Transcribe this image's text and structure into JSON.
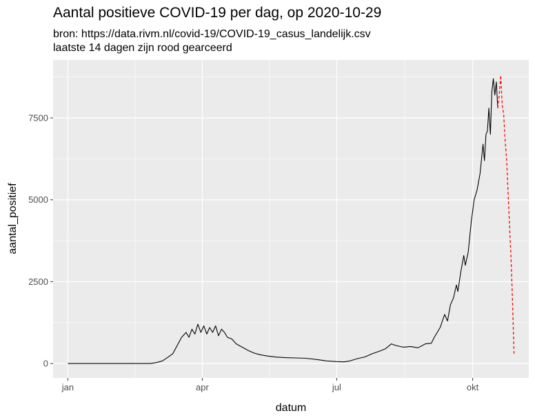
{
  "title": "Aantal positieve COVID-19 per dag, op 2020-10-29",
  "subtitle_line1": "bron: https://data.rivm.nl/covid-19/COVID-19_casus_landelijk.csv",
  "subtitle_line2": "laatste 14 dagen zijn rood gearceerd",
  "colors": {
    "panel_background": "#ebebeb",
    "grid": "#ffffff",
    "main_series": "#000000",
    "last_14_days": "#ff0000"
  },
  "chart_data": {
    "type": "line",
    "title": "Aantal positieve COVID-19 per dag, op 2020-10-29",
    "subtitle": "bron: https://data.rivm.nl/covid-19/COVID-19_casus_landelijk.csv / laatste 14 dagen zijn rood gearceerd",
    "xlabel": "datum",
    "ylabel": "aantal_positief",
    "x_ticks": [
      {
        "label": "jan",
        "date": "2020-01-01"
      },
      {
        "label": "apr",
        "date": "2020-04-01"
      },
      {
        "label": "jul",
        "date": "2020-07-01"
      },
      {
        "label": "okt",
        "date": "2020-10-01"
      }
    ],
    "y_ticks": [
      0,
      2500,
      5000,
      7500
    ],
    "xlim": [
      "2019-12-22",
      "2020-11-08"
    ],
    "ylim": [
      -440,
      9270
    ],
    "grid": true,
    "series": [
      {
        "style": "solid",
        "points": [
          [
            "2020-01-01",
            0
          ],
          [
            "2020-02-26",
            0
          ],
          [
            "2020-03-01",
            30
          ],
          [
            "2020-03-05",
            80
          ],
          [
            "2020-03-09",
            200
          ],
          [
            "2020-03-12",
            300
          ],
          [
            "2020-03-15",
            550
          ],
          [
            "2020-03-18",
            800
          ],
          [
            "2020-03-21",
            950
          ],
          [
            "2020-03-23",
            800
          ],
          [
            "2020-03-25",
            1050
          ],
          [
            "2020-03-27",
            900
          ],
          [
            "2020-03-29",
            1200
          ],
          [
            "2020-03-31",
            950
          ],
          [
            "2020-04-02",
            1150
          ],
          [
            "2020-04-04",
            900
          ],
          [
            "2020-04-06",
            1100
          ],
          [
            "2020-04-08",
            950
          ],
          [
            "2020-04-10",
            1150
          ],
          [
            "2020-04-12",
            850
          ],
          [
            "2020-04-14",
            1050
          ],
          [
            "2020-04-16",
            950
          ],
          [
            "2020-04-18",
            800
          ],
          [
            "2020-04-21",
            750
          ],
          [
            "2020-04-24",
            600
          ],
          [
            "2020-04-28",
            500
          ],
          [
            "2020-05-02",
            400
          ],
          [
            "2020-05-06",
            320
          ],
          [
            "2020-05-10",
            270
          ],
          [
            "2020-05-15",
            230
          ],
          [
            "2020-05-20",
            200
          ],
          [
            "2020-05-27",
            180
          ],
          [
            "2020-06-03",
            170
          ],
          [
            "2020-06-10",
            160
          ],
          [
            "2020-06-18",
            120
          ],
          [
            "2020-06-24",
            80
          ],
          [
            "2020-07-01",
            60
          ],
          [
            "2020-07-06",
            50
          ],
          [
            "2020-07-10",
            80
          ],
          [
            "2020-07-15",
            150
          ],
          [
            "2020-07-20",
            200
          ],
          [
            "2020-07-25",
            300
          ],
          [
            "2020-07-30",
            380
          ],
          [
            "2020-08-03",
            450
          ],
          [
            "2020-08-07",
            600
          ],
          [
            "2020-08-10",
            550
          ],
          [
            "2020-08-15",
            500
          ],
          [
            "2020-08-20",
            520
          ],
          [
            "2020-08-25",
            480
          ],
          [
            "2020-08-30",
            600
          ],
          [
            "2020-09-03",
            620
          ],
          [
            "2020-09-05",
            800
          ],
          [
            "2020-09-09",
            1100
          ],
          [
            "2020-09-12",
            1500
          ],
          [
            "2020-09-14",
            1300
          ],
          [
            "2020-09-16",
            1800
          ],
          [
            "2020-09-18",
            2000
          ],
          [
            "2020-09-20",
            2400
          ],
          [
            "2020-09-21",
            2200
          ],
          [
            "2020-09-23",
            2800
          ],
          [
            "2020-09-25",
            3300
          ],
          [
            "2020-09-26",
            3000
          ],
          [
            "2020-09-28",
            3400
          ],
          [
            "2020-09-30",
            4300
          ],
          [
            "2020-10-02",
            5000
          ],
          [
            "2020-10-04",
            5300
          ],
          [
            "2020-10-06",
            5800
          ],
          [
            "2020-10-08",
            6700
          ],
          [
            "2020-10-09",
            6200
          ],
          [
            "2020-10-10",
            7000
          ],
          [
            "2020-10-11",
            7100
          ],
          [
            "2020-10-12",
            7800
          ],
          [
            "2020-10-13",
            7000
          ],
          [
            "2020-10-14",
            8300
          ],
          [
            "2020-10-15",
            8700
          ],
          [
            "2020-10-16",
            8200
          ],
          [
            "2020-10-17",
            8600
          ],
          [
            "2020-10-18",
            7800
          ]
        ]
      },
      {
        "style": "dashed",
        "color": "#ff0000",
        "points": [
          [
            "2020-10-18",
            7800
          ],
          [
            "2020-10-19",
            8200
          ],
          [
            "2020-10-20",
            8800
          ],
          [
            "2020-10-21",
            7900
          ],
          [
            "2020-10-22",
            7600
          ],
          [
            "2020-10-23",
            6800
          ],
          [
            "2020-10-24",
            6200
          ],
          [
            "2020-10-25",
            5200
          ],
          [
            "2020-10-26",
            4200
          ],
          [
            "2020-10-27",
            3200
          ],
          [
            "2020-10-28",
            1900
          ],
          [
            "2020-10-29",
            300
          ]
        ]
      }
    ]
  }
}
